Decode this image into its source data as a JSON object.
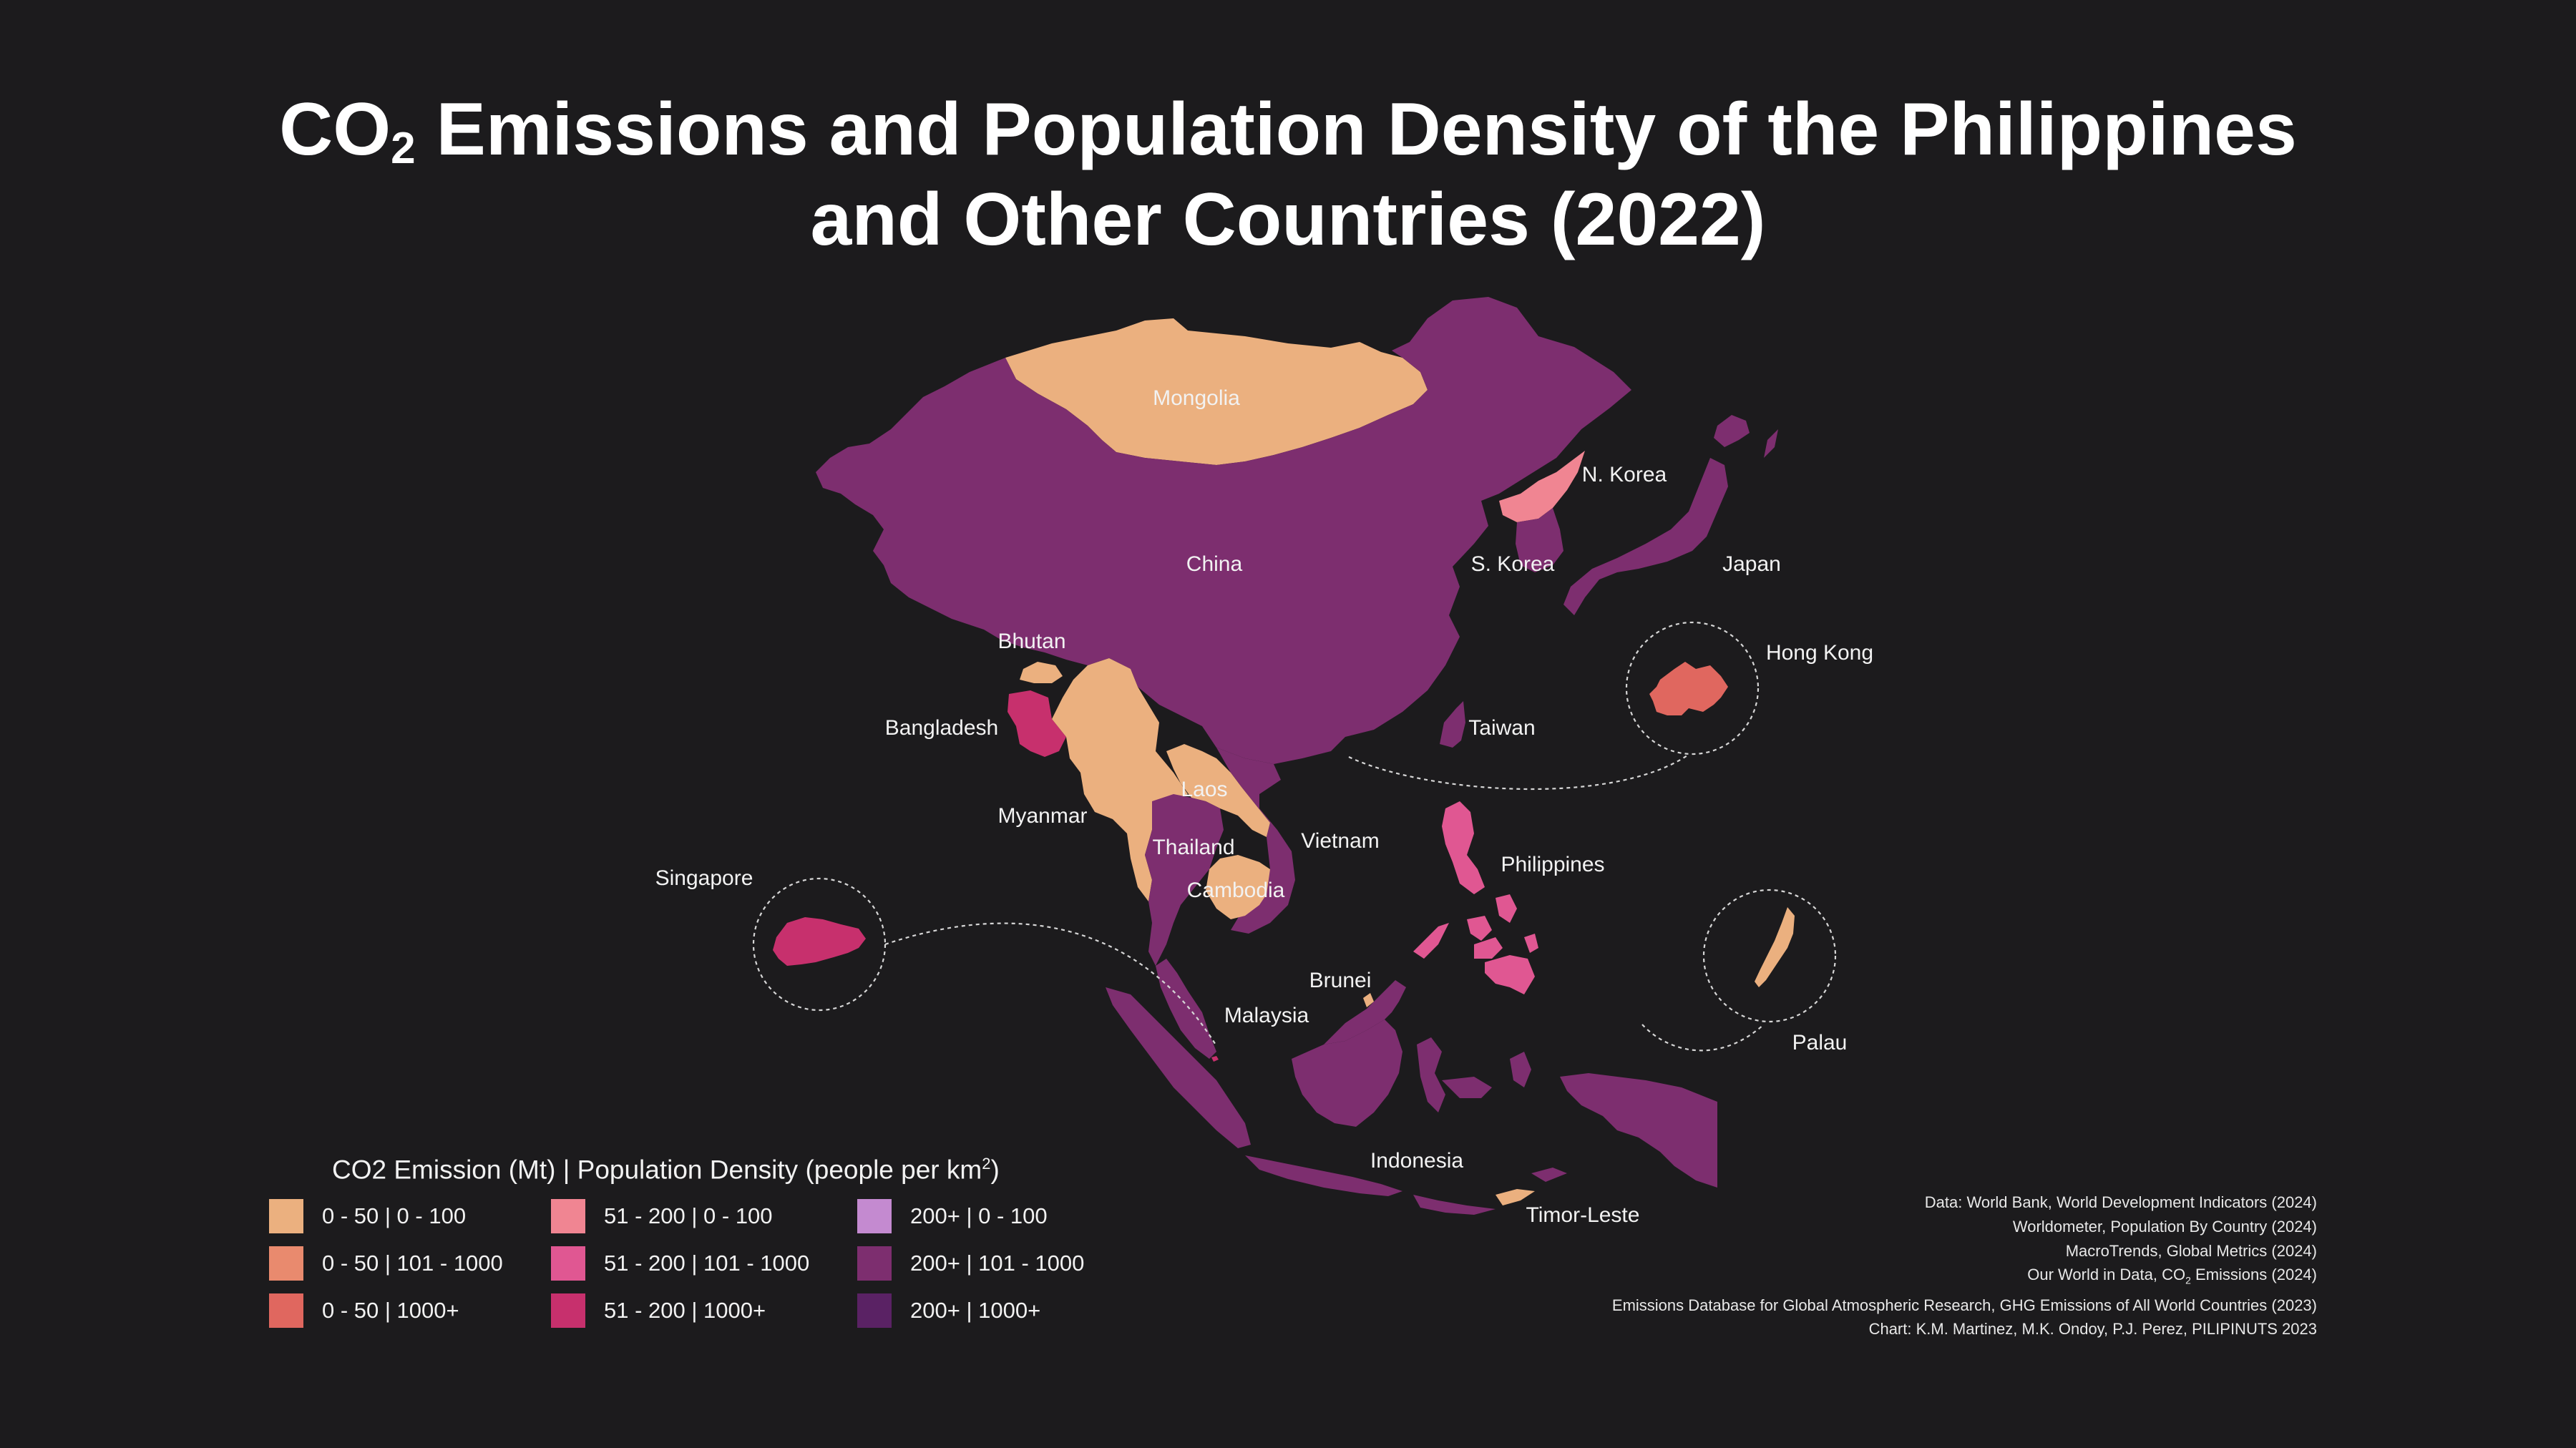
{
  "title_line1_pre": "CO",
  "title_line1_sub": "2",
  "title_line1_post": " Emissions and Population Density of the Philippines",
  "title_line2": "and Other Countries (2022)",
  "legend": {
    "title_pre": "CO2 Emission (Mt) | Population Density (people per km",
    "title_sup": "2",
    "title_post": ")",
    "items": [
      {
        "label": "0 - 50 | 0 - 100",
        "color": "#ebb07f"
      },
      {
        "label": "51 - 200 | 0 - 100",
        "color": "#f08592"
      },
      {
        "label": "200+ | 0 - 100",
        "color": "#c48ad0"
      },
      {
        "label": "0 - 50 | 101 - 1000",
        "color": "#e98a6e"
      },
      {
        "label": "51 - 200 | 101 - 1000",
        "color": "#e05792"
      },
      {
        "label": "200+ | 101 - 1000",
        "color": "#7d2e6f"
      },
      {
        "label": "0 - 50 | 1000+",
        "color": "#e0675f"
      },
      {
        "label": "51 - 200 | 1000+",
        "color": "#c7306d"
      },
      {
        "label": "200+ | 1000+",
        "color": "#5a2264"
      }
    ]
  },
  "countries": {
    "mongolia": {
      "label": "Mongolia",
      "color": "#ebb07f"
    },
    "china": {
      "label": "China",
      "color": "#7d2e6f"
    },
    "n_korea": {
      "label": "N. Korea",
      "color": "#f08592"
    },
    "s_korea": {
      "label": "S. Korea",
      "color": "#7d2e6f"
    },
    "japan": {
      "label": "Japan",
      "color": "#7d2e6f"
    },
    "hong_kong": {
      "label": "Hong Kong",
      "color": "#e0675f"
    },
    "taiwan": {
      "label": "Taiwan",
      "color": "#7d2e6f"
    },
    "bhutan": {
      "label": "Bhutan",
      "color": "#ebb07f"
    },
    "bangladesh": {
      "label": "Bangladesh",
      "color": "#c7306d"
    },
    "myanmar": {
      "label": "Myanmar",
      "color": "#ebb07f"
    },
    "laos": {
      "label": "Laos",
      "color": "#ebb07f"
    },
    "thailand": {
      "label": "Thailand",
      "color": "#7d2e6f"
    },
    "cambodia": {
      "label": "Cambodia",
      "color": "#ebb07f"
    },
    "vietnam": {
      "label": "Vietnam",
      "color": "#7d2e6f"
    },
    "philippines": {
      "label": "Philippines",
      "color": "#e05792"
    },
    "singapore": {
      "label": "Singapore",
      "color": "#c7306d"
    },
    "brunei": {
      "label": "Brunei",
      "color": "#ebb07f"
    },
    "malaysia": {
      "label": "Malaysia",
      "color": "#7d2e6f"
    },
    "indonesia": {
      "label": "Indonesia",
      "color": "#7d2e6f"
    },
    "palau": {
      "label": "Palau",
      "color": "#ebb07f"
    },
    "timor_leste": {
      "label": "Timor-Leste",
      "color": "#ebb07f"
    }
  },
  "sources": [
    {
      "text": "Data: World Bank, World Development Indicators (2024)"
    },
    {
      "text": "Worldometer, Population By Country (2024)"
    },
    {
      "text": "MacroTrends, Global Metrics (2024)"
    },
    {
      "text_pre": "Our World in Data, CO",
      "text_sub": "2",
      "text_post": " Emissions (2024)"
    },
    {
      "text": "Emissions Database for Global Atmospheric Research, GHG Emissions of All World Countries (2023)"
    },
    {
      "text": "Chart: K.M. Martinez, M.K. Ondoy, P.J. Perez, PILIPINUTS 2023"
    }
  ]
}
